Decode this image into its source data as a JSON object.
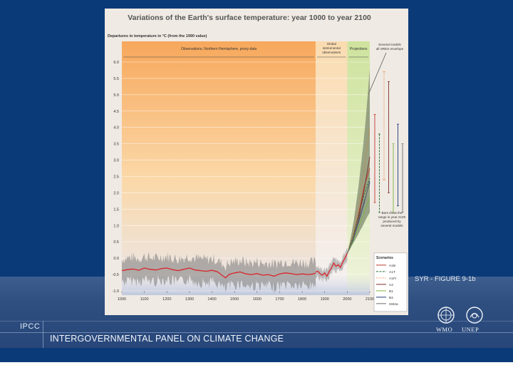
{
  "slide": {
    "org_abbrev": "IPCC",
    "org_name": "INTERGOVERNMENTAL PANEL ON CLIMATE CHANGE",
    "figure_ref": "SYR - FIGURE 9-1b",
    "logo_left_label": "WMO",
    "logo_right_label": "UNEP"
  },
  "colors": {
    "background": "#0b3a78",
    "band": "#2f4f80",
    "proxy_band": "#f6a45a",
    "instrumental_band": "#f4ead2",
    "projection_band": "#cfe39e",
    "reconstruction_line": "#d9242a",
    "uncertainty_band": "#7a7a7a"
  },
  "chart_data": {
    "type": "line",
    "title": "Variations of the Earth's surface temperature: year 1000 to year 2100",
    "ylabel": "Departures in temperature in °C (from the 1990 value)",
    "xlabel": "",
    "xlim": [
      1000,
      2100
    ],
    "ylim": [
      -1.0,
      6.0
    ],
    "x_ticks": [
      "1000",
      "1100",
      "1200",
      "1300",
      "1400",
      "1500",
      "1600",
      "1700",
      "1800",
      "1900",
      "2000",
      "2100"
    ],
    "y_ticks": [
      "6.0",
      "5.5",
      "5.0",
      "4.5",
      "4.0",
      "3.5",
      "3.0",
      "2.5",
      "2.0",
      "1.5",
      "1.0",
      "0.5",
      "0.0",
      "-0.5",
      "-1.0"
    ],
    "periods": [
      {
        "label": "Observations, Northern Hemisphere, proxy data",
        "from": 1000,
        "to": 1860
      },
      {
        "label": "Global instrumental observations",
        "from": 1860,
        "to": 2000
      },
      {
        "label": "Projections",
        "from": 2000,
        "to": 2100
      }
    ],
    "annotations": {
      "envelope": "Several models all SRES envelope",
      "bars": "Bars show the range in year 2100 produced by several models"
    },
    "reconstruction": {
      "x": [
        1000,
        1025,
        1050,
        1075,
        1100,
        1125,
        1150,
        1175,
        1200,
        1225,
        1250,
        1275,
        1300,
        1325,
        1350,
        1375,
        1400,
        1425,
        1450,
        1460,
        1475,
        1500,
        1525,
        1550,
        1575,
        1600,
        1625,
        1650,
        1675,
        1700,
        1725,
        1750,
        1775,
        1800,
        1825,
        1850,
        1860
      ],
      "y": [
        -0.38,
        -0.35,
        -0.33,
        -0.37,
        -0.3,
        -0.34,
        -0.36,
        -0.32,
        -0.3,
        -0.35,
        -0.38,
        -0.34,
        -0.3,
        -0.36,
        -0.38,
        -0.4,
        -0.37,
        -0.42,
        -0.55,
        -0.6,
        -0.5,
        -0.45,
        -0.42,
        -0.48,
        -0.5,
        -0.47,
        -0.52,
        -0.5,
        -0.55,
        -0.48,
        -0.45,
        -0.47,
        -0.5,
        -0.48,
        -0.5,
        -0.48,
        -0.45
      ]
    },
    "instrumental": {
      "x": [
        1860,
        1870,
        1880,
        1890,
        1900,
        1910,
        1920,
        1930,
        1940,
        1950,
        1960,
        1970,
        1980,
        1990,
        2000
      ],
      "y": [
        -0.42,
        -0.4,
        -0.48,
        -0.52,
        -0.45,
        -0.55,
        -0.4,
        -0.3,
        -0.15,
        -0.25,
        -0.2,
        -0.28,
        -0.12,
        0.0,
        0.15
      ]
    },
    "envelope": {
      "x": [
        2000,
        2010,
        2020,
        2030,
        2040,
        2050,
        2060,
        2070,
        2080,
        2090,
        2100
      ],
      "upper": [
        0.15,
        0.45,
        0.8,
        1.2,
        1.7,
        2.2,
        2.8,
        3.4,
        4.1,
        4.9,
        5.8
      ],
      "lower": [
        0.15,
        0.25,
        0.38,
        0.5,
        0.62,
        0.75,
        0.88,
        1.0,
        1.15,
        1.28,
        1.4
      ]
    },
    "series": [
      {
        "name": "A1B",
        "color": "#c0392b",
        "x": [
          2000,
          2025,
          2050,
          2075,
          2100
        ],
        "y": [
          0.15,
          0.6,
          1.35,
          2.2,
          2.75
        ]
      },
      {
        "name": "A1T",
        "color": "#2c6e2f",
        "x": [
          2000,
          2025,
          2050,
          2075,
          2100
        ],
        "y": [
          0.15,
          0.65,
          1.3,
          1.95,
          2.45
        ]
      },
      {
        "name": "A1FI",
        "color": "#e07a2a",
        "x": [
          2000,
          2025,
          2050,
          2075,
          2100
        ],
        "y": [
          0.15,
          0.7,
          1.6,
          2.75,
          4.0
        ]
      },
      {
        "name": "A2",
        "color": "#7a2f28",
        "x": [
          2000,
          2025,
          2050,
          2075,
          2100
        ],
        "y": [
          0.15,
          0.55,
          1.2,
          2.1,
          3.1
        ]
      },
      {
        "name": "B1",
        "color": "#7cb342",
        "x": [
          2000,
          2025,
          2050,
          2075,
          2100
        ],
        "y": [
          0.15,
          0.5,
          0.95,
          1.4,
          1.85
        ]
      },
      {
        "name": "B2",
        "color": "#1f3a7a",
        "x": [
          2000,
          2025,
          2050,
          2075,
          2100
        ],
        "y": [
          0.15,
          0.55,
          1.1,
          1.7,
          2.35
        ]
      },
      {
        "name": "IS92a",
        "color": "#6d6d6d",
        "x": [
          2000,
          2025,
          2050,
          2075,
          2100
        ],
        "y": [
          0.15,
          0.58,
          1.15,
          1.75,
          2.3
        ]
      }
    ],
    "range_bars": [
      {
        "name": "A1B",
        "color": "#c0392b",
        "low": 1.7,
        "high": 4.4
      },
      {
        "name": "A1T",
        "color": "#2c6e2f",
        "low": 1.4,
        "high": 3.8
      },
      {
        "name": "A1FI",
        "color": "#e07a2a",
        "low": 2.4,
        "high": 5.7
      },
      {
        "name": "A2",
        "color": "#7a2f28",
        "low": 2.0,
        "high": 5.4
      },
      {
        "name": "B1",
        "color": "#7cb342",
        "low": 1.4,
        "high": 3.5
      },
      {
        "name": "B2",
        "color": "#1f3a7a",
        "low": 1.6,
        "high": 4.1
      },
      {
        "name": "IS92a",
        "color": "#6d6d6d",
        "low": 1.4,
        "high": 3.5
      }
    ],
    "legend_title": "Scenarios",
    "legend": [
      "A1B",
      "A1T",
      "A1FI",
      "A2",
      "B1",
      "B2",
      "IS92a"
    ]
  }
}
